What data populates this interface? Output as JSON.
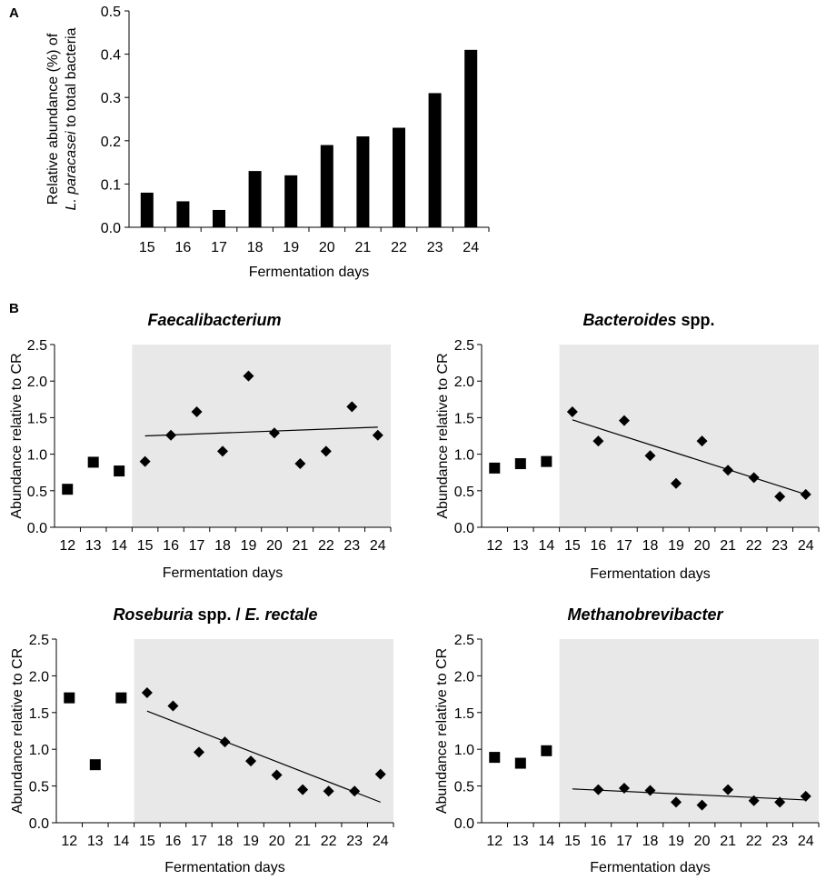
{
  "panels": {
    "a": "A",
    "b": "B"
  },
  "chart_data": [
    {
      "id": "A",
      "type": "bar",
      "title": "",
      "ylabel_line1": "Relative abundance (%) of",
      "ylabel_line2_italic": "L. paracasei",
      "ylabel_line2_rest": " to total bacteria",
      "xlabel": "Fermentation days",
      "categories": [
        "15",
        "16",
        "17",
        "18",
        "19",
        "20",
        "21",
        "22",
        "23",
        "24"
      ],
      "values": [
        0.08,
        0.06,
        0.04,
        0.13,
        0.12,
        0.19,
        0.21,
        0.23,
        0.31,
        0.41
      ],
      "ylim": [
        0,
        0.5
      ],
      "yticks": [
        "0.0",
        "0.1",
        "0.2",
        "0.3",
        "0.4",
        "0.5"
      ],
      "bar_color": "#000000"
    },
    {
      "id": "faecalibacterium",
      "type": "scatter",
      "title_italic": "Faecalibacterium",
      "title_rest": "",
      "ylabel": "Abundance relative to CR",
      "xlabel": "Fermentation days",
      "x_ticks": [
        "12",
        "13",
        "14",
        "15",
        "16",
        "17",
        "18",
        "19",
        "20",
        "21",
        "22",
        "23",
        "24"
      ],
      "ylim": [
        0,
        2.5
      ],
      "yticks": [
        "0.0",
        "0.5",
        "1.0",
        "1.5",
        "2.0",
        "2.5"
      ],
      "shaded_from_day": 14.5,
      "shade_color": "#e8e8e8",
      "squares": [
        {
          "x": 12,
          "y": 0.52
        },
        {
          "x": 13,
          "y": 0.89
        },
        {
          "x": 14,
          "y": 0.77
        }
      ],
      "diamonds": [
        {
          "x": 15,
          "y": 0.9
        },
        {
          "x": 16,
          "y": 1.26
        },
        {
          "x": 17,
          "y": 1.58
        },
        {
          "x": 18,
          "y": 1.04
        },
        {
          "x": 19,
          "y": 2.07
        },
        {
          "x": 20,
          "y": 1.29
        },
        {
          "x": 21,
          "y": 0.87
        },
        {
          "x": 22,
          "y": 1.04
        },
        {
          "x": 23,
          "y": 1.65
        },
        {
          "x": 24,
          "y": 1.26
        }
      ],
      "trendline": {
        "x1": 15,
        "y1": 1.25,
        "x2": 24,
        "y2": 1.37
      }
    },
    {
      "id": "bacteroides",
      "type": "scatter",
      "title_italic": "Bacteroides",
      "title_rest": " spp.",
      "ylabel": "Abundance relative to CR",
      "xlabel": "Fermentation days",
      "x_ticks": [
        "12",
        "13",
        "14",
        "15",
        "16",
        "17",
        "18",
        "19",
        "20",
        "21",
        "22",
        "23",
        "24"
      ],
      "ylim": [
        0,
        2.5
      ],
      "yticks": [
        "0.0",
        "0.5",
        "1.0",
        "1.5",
        "2.0",
        "2.5"
      ],
      "shaded_from_day": 14.5,
      "shade_color": "#e8e8e8",
      "squares": [
        {
          "x": 12,
          "y": 0.81
        },
        {
          "x": 13,
          "y": 0.87
        },
        {
          "x": 14,
          "y": 0.9
        }
      ],
      "diamonds": [
        {
          "x": 15,
          "y": 1.58
        },
        {
          "x": 16,
          "y": 1.18
        },
        {
          "x": 17,
          "y": 1.46
        },
        {
          "x": 18,
          "y": 0.98
        },
        {
          "x": 19,
          "y": 0.6
        },
        {
          "x": 20,
          "y": 1.18
        },
        {
          "x": 21,
          "y": 0.78
        },
        {
          "x": 22,
          "y": 0.68
        },
        {
          "x": 23,
          "y": 0.42
        },
        {
          "x": 24,
          "y": 0.45
        }
      ],
      "trendline": {
        "x1": 15,
        "y1": 1.47,
        "x2": 24,
        "y2": 0.45
      }
    },
    {
      "id": "roseburia",
      "type": "scatter",
      "title_italic": "Roseburia",
      "title_rest": " spp. / ",
      "title_italic2": "E. rectale",
      "ylabel": "Abundance relative to CR",
      "xlabel": "Fermentation days",
      "x_ticks": [
        "12",
        "13",
        "14",
        "15",
        "16",
        "17",
        "18",
        "19",
        "20",
        "21",
        "22",
        "23",
        "24"
      ],
      "ylim": [
        0,
        2.5
      ],
      "yticks": [
        "0.0",
        "0.5",
        "1.0",
        "1.5",
        "2.0",
        "2.5"
      ],
      "shaded_from_day": 14.5,
      "shade_color": "#e8e8e8",
      "squares": [
        {
          "x": 12,
          "y": 1.7
        },
        {
          "x": 13,
          "y": 0.79
        },
        {
          "x": 14,
          "y": 1.7
        }
      ],
      "diamonds": [
        {
          "x": 15,
          "y": 1.77
        },
        {
          "x": 16,
          "y": 1.59
        },
        {
          "x": 17,
          "y": 0.96
        },
        {
          "x": 18,
          "y": 1.1
        },
        {
          "x": 19,
          "y": 0.84
        },
        {
          "x": 20,
          "y": 0.65
        },
        {
          "x": 21,
          "y": 0.45
        },
        {
          "x": 22,
          "y": 0.43
        },
        {
          "x": 23,
          "y": 0.43
        },
        {
          "x": 24,
          "y": 0.66
        }
      ],
      "trendline": {
        "x1": 15,
        "y1": 1.52,
        "x2": 24,
        "y2": 0.28
      }
    },
    {
      "id": "methanobrevibacter",
      "type": "scatter",
      "title_italic": "Methanobrevibacter",
      "title_rest": "",
      "ylabel": "Abundance relative to CR",
      "xlabel": "Fermentation days",
      "x_ticks": [
        "12",
        "13",
        "14",
        "15",
        "16",
        "17",
        "18",
        "19",
        "20",
        "21",
        "22",
        "23",
        "24"
      ],
      "ylim": [
        0,
        2.5
      ],
      "yticks": [
        "0.0",
        "0.5",
        "1.0",
        "1.5",
        "2.0",
        "2.5"
      ],
      "shaded_from_day": 14.5,
      "shade_color": "#e8e8e8",
      "squares": [
        {
          "x": 12,
          "y": 0.89
        },
        {
          "x": 13,
          "y": 0.81
        },
        {
          "x": 14,
          "y": 0.98
        }
      ],
      "diamonds": [
        {
          "x": 16,
          "y": 0.45
        },
        {
          "x": 17,
          "y": 0.47
        },
        {
          "x": 18,
          "y": 0.44
        },
        {
          "x": 19,
          "y": 0.28
        },
        {
          "x": 20,
          "y": 0.24
        },
        {
          "x": 21,
          "y": 0.45
        },
        {
          "x": 22,
          "y": 0.3
        },
        {
          "x": 23,
          "y": 0.28
        },
        {
          "x": 24,
          "y": 0.36
        }
      ],
      "trendline": {
        "x1": 15,
        "y1": 0.46,
        "x2": 24,
        "y2": 0.31
      }
    }
  ]
}
